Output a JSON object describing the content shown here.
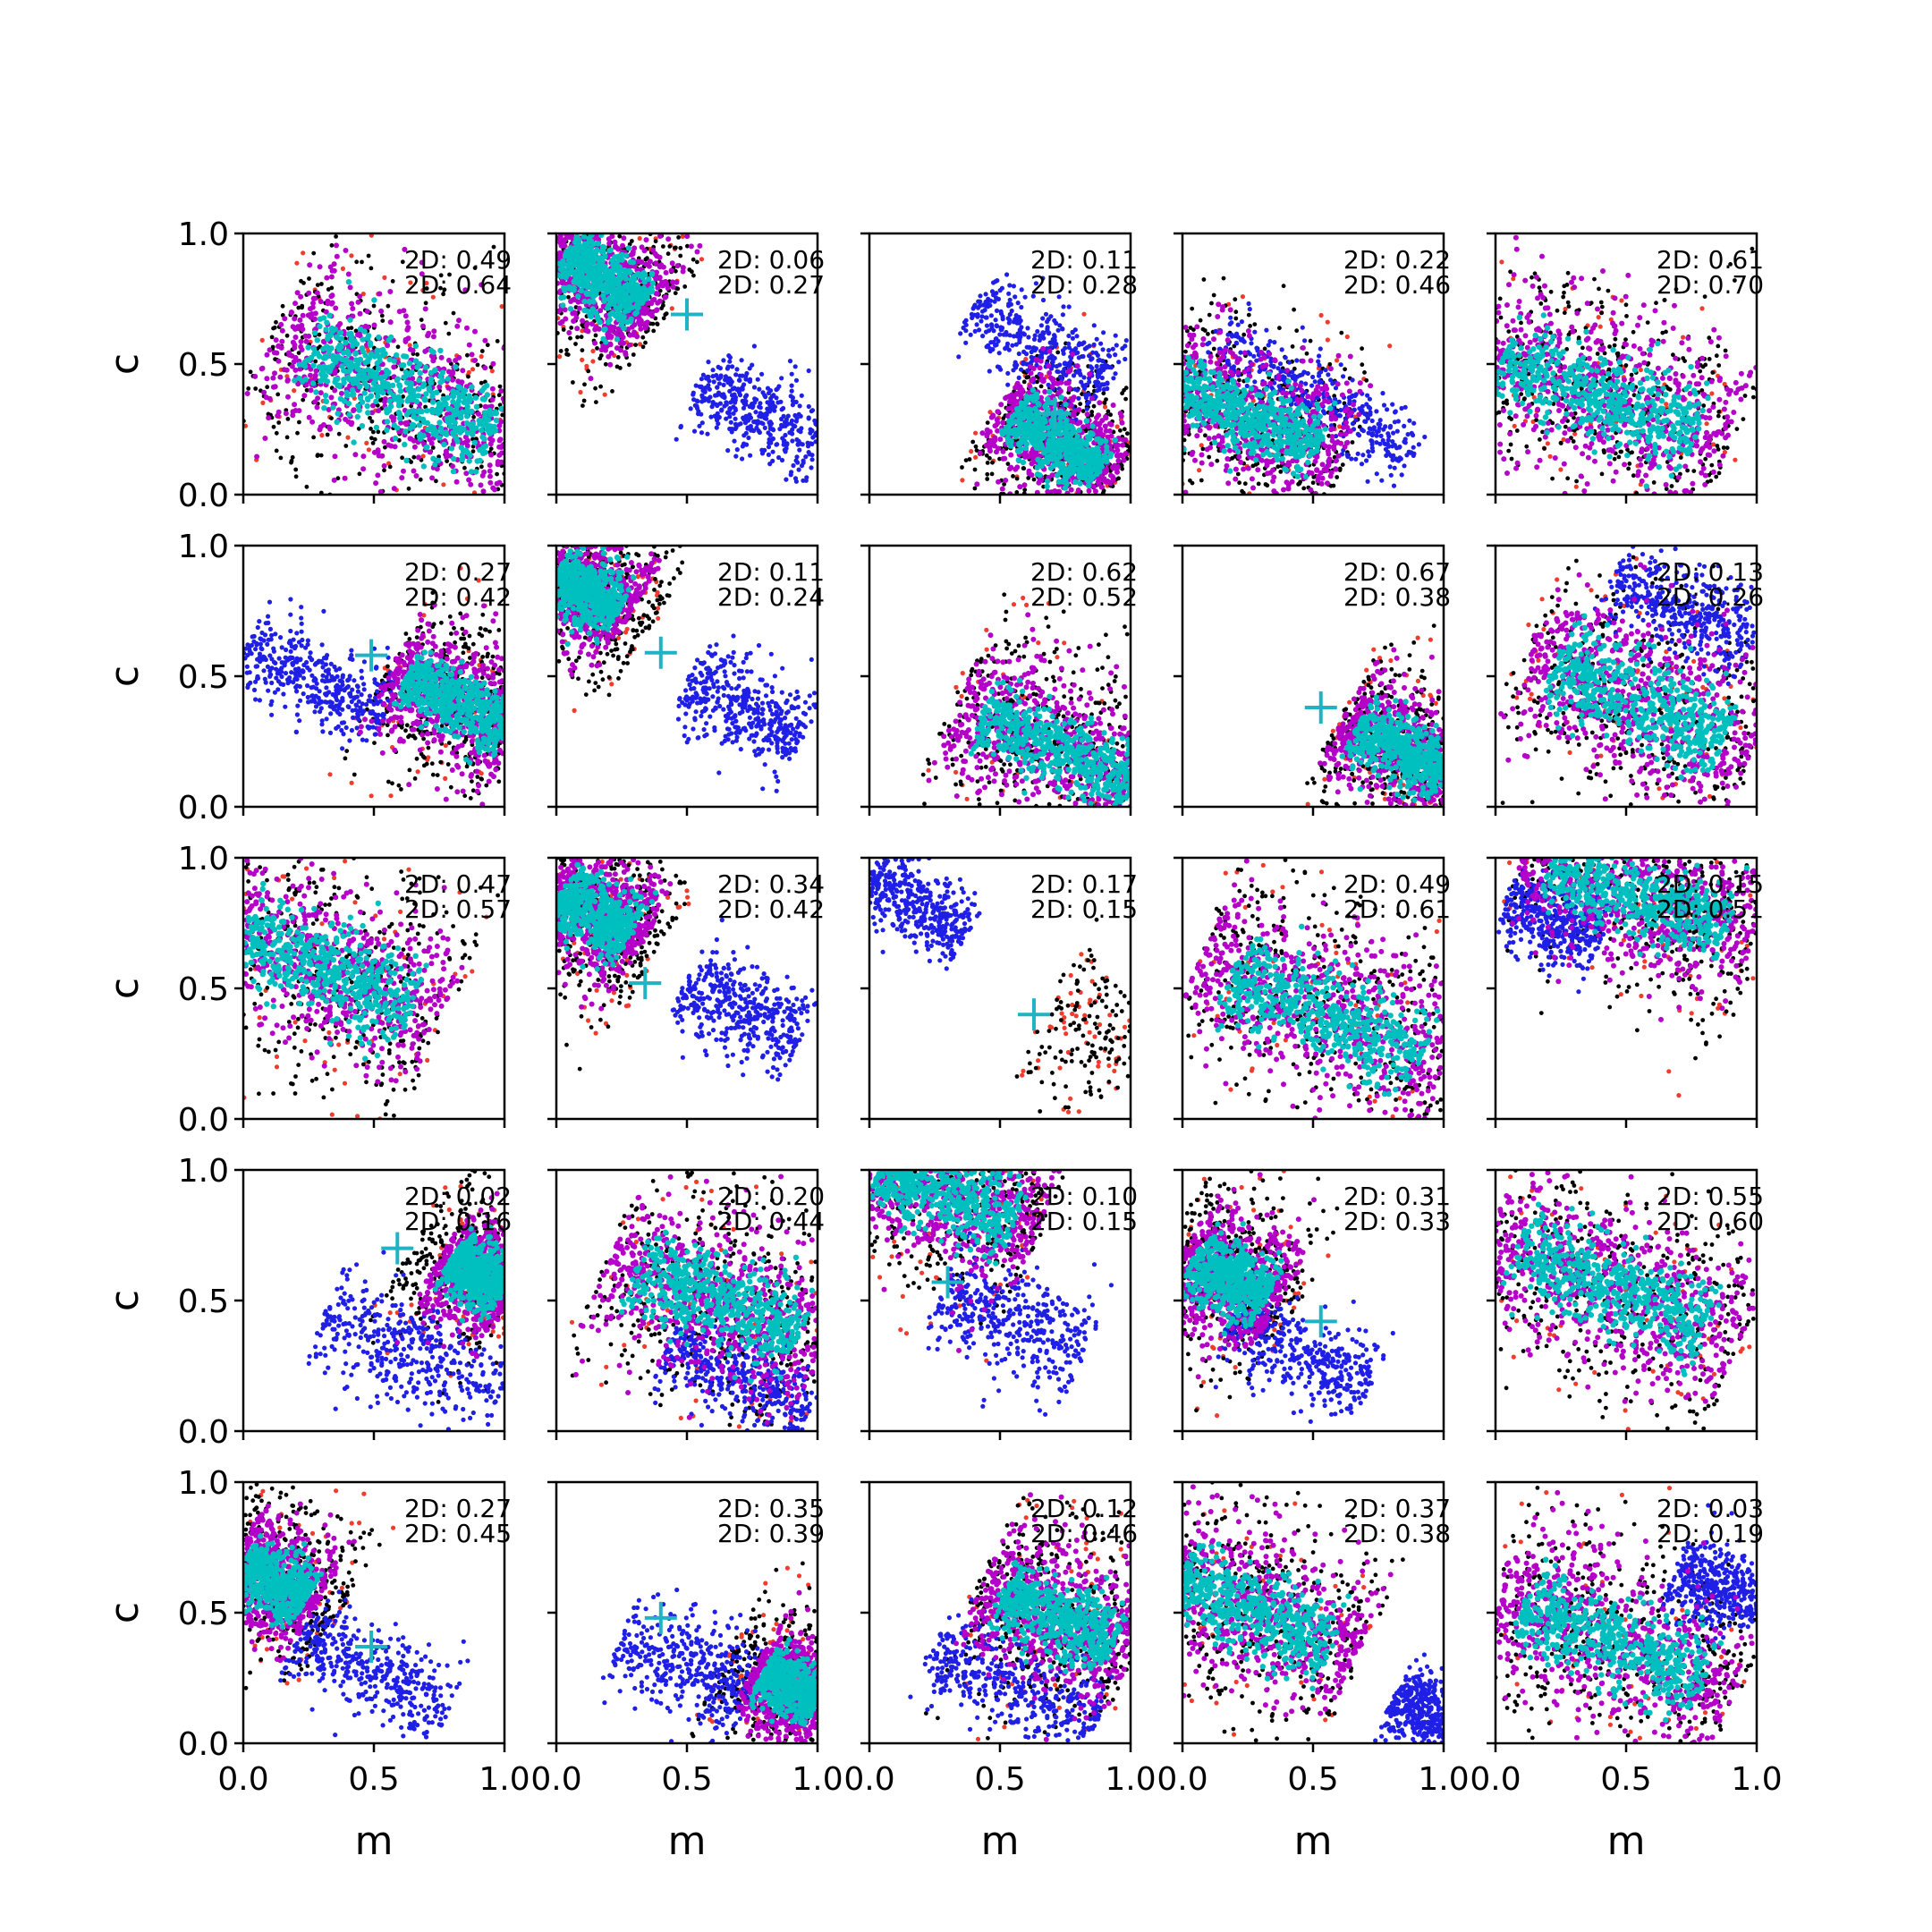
{
  "figure": {
    "background": "#ffffff",
    "xlabel": "m",
    "ylabel": "c",
    "tick_labels": [
      "0.0",
      "0.5",
      "1.0"
    ],
    "annotation_prefix": "2D:"
  },
  "colors": {
    "red": "#f03c2d",
    "black": "#000000",
    "blue": "#1f1fe6",
    "magenta": "#b400c8",
    "cyan": "#00bfbf",
    "marker": "#1fb3c4"
  },
  "chart_data": [
    {
      "type": "scatter",
      "row": 0,
      "col": 0,
      "xlim": [
        0,
        1
      ],
      "ylim": [
        0,
        1
      ],
      "annotations": [
        "2D: 0.49",
        "2D: 0.64"
      ],
      "marker": null,
      "blue_cluster": null,
      "core": {
        "cx": 0.6,
        "cy": 0.4,
        "slope": -0.5,
        "len": 1.0,
        "w": 0.3
      },
      "clip_right": true
    },
    {
      "type": "scatter",
      "row": 0,
      "col": 1,
      "xlim": [
        0,
        1
      ],
      "ylim": [
        0,
        1
      ],
      "annotations": [
        "2D: 0.06",
        "2D: 0.27"
      ],
      "marker": [
        0.5,
        0.69
      ],
      "blue_cluster": {
        "cx": 0.78,
        "cy": 0.3,
        "slope": -0.5,
        "len": 0.55,
        "w": 0.14
      },
      "core": {
        "cx": 0.18,
        "cy": 0.82,
        "slope": -0.7,
        "len": 0.45,
        "w": 0.22
      },
      "clip_right": false
    },
    {
      "type": "scatter",
      "row": 0,
      "col": 2,
      "xlim": [
        0,
        1
      ],
      "ylim": [
        0,
        1
      ],
      "annotations": [
        "2D: 0.11",
        "2D: 0.28"
      ],
      "marker": [
        0.71,
        0.31
      ],
      "blue_cluster": {
        "cx": 0.66,
        "cy": 0.57,
        "slope": -0.6,
        "len": 0.6,
        "w": 0.14
      },
      "core": {
        "cx": 0.72,
        "cy": 0.2,
        "slope": -0.7,
        "len": 0.5,
        "w": 0.2
      },
      "clip_right": true
    },
    {
      "type": "scatter",
      "row": 0,
      "col": 3,
      "xlim": [
        0,
        1
      ],
      "ylim": [
        0,
        1
      ],
      "annotations": [
        "2D: 0.22",
        "2D: 0.46"
      ],
      "marker": null,
      "blue_cluster": {
        "cx": 0.5,
        "cy": 0.38,
        "slope": -0.6,
        "len": 0.9,
        "w": 0.12
      },
      "core": {
        "cx": 0.25,
        "cy": 0.3,
        "slope": -0.45,
        "len": 0.75,
        "w": 0.24
      },
      "clip_right": true
    },
    {
      "type": "scatter",
      "row": 0,
      "col": 4,
      "xlim": [
        0,
        1
      ],
      "ylim": [
        0,
        1
      ],
      "annotations": [
        "2D: 0.61",
        "2D: 0.70"
      ],
      "marker": null,
      "blue_cluster": null,
      "core": {
        "cx": 0.4,
        "cy": 0.38,
        "slope": -0.4,
        "len": 1.0,
        "w": 0.3
      },
      "clip_right": true
    },
    {
      "type": "scatter",
      "row": 1,
      "col": 0,
      "xlim": [
        0,
        1
      ],
      "ylim": [
        0,
        1
      ],
      "annotations": [
        "2D: 0.27",
        "2D: 0.42"
      ],
      "marker": [
        0.49,
        0.58
      ],
      "blue_cluster": {
        "cx": 0.28,
        "cy": 0.48,
        "slope": -0.5,
        "len": 0.6,
        "w": 0.14
      },
      "core": {
        "cx": 0.82,
        "cy": 0.4,
        "slope": -0.55,
        "len": 0.55,
        "w": 0.22
      },
      "clip_right": true
    },
    {
      "type": "scatter",
      "row": 1,
      "col": 1,
      "xlim": [
        0,
        1
      ],
      "ylim": [
        0,
        1
      ],
      "annotations": [
        "2D: 0.11",
        "2D: 0.24"
      ],
      "marker": [
        0.4,
        0.59
      ],
      "blue_cluster": {
        "cx": 0.72,
        "cy": 0.37,
        "slope": -0.5,
        "len": 0.5,
        "w": 0.14
      },
      "core": {
        "cx": 0.12,
        "cy": 0.82,
        "slope": -0.6,
        "len": 0.35,
        "w": 0.22
      },
      "clip_right": false
    },
    {
      "type": "scatter",
      "row": 1,
      "col": 2,
      "xlim": [
        0,
        1
      ],
      "ylim": [
        0,
        1
      ],
      "annotations": [
        "2D: 0.62",
        "2D: 0.52"
      ],
      "marker": null,
      "blue_cluster": null,
      "core": {
        "cx": 0.72,
        "cy": 0.22,
        "slope": -0.45,
        "len": 0.8,
        "w": 0.26
      },
      "clip_right": true
    },
    {
      "type": "scatter",
      "row": 1,
      "col": 3,
      "xlim": [
        0,
        1
      ],
      "ylim": [
        0,
        1
      ],
      "annotations": [
        "2D: 0.67",
        "2D: 0.38"
      ],
      "marker": [
        0.53,
        0.38
      ],
      "blue_cluster": null,
      "core": {
        "cx": 0.85,
        "cy": 0.22,
        "slope": -0.55,
        "len": 0.5,
        "w": 0.22
      },
      "clip_right": true
    },
    {
      "type": "scatter",
      "row": 1,
      "col": 4,
      "xlim": [
        0,
        1
      ],
      "ylim": [
        0,
        1
      ],
      "annotations": [
        "2D: 0.13",
        "2D: 0.26"
      ],
      "marker": null,
      "blue_cluster": {
        "cx": 0.72,
        "cy": 0.76,
        "slope": -0.55,
        "len": 0.6,
        "w": 0.14
      },
      "core": {
        "cx": 0.55,
        "cy": 0.4,
        "slope": -0.45,
        "len": 0.9,
        "w": 0.3
      },
      "clip_right": true
    },
    {
      "type": "scatter",
      "row": 2,
      "col": 0,
      "xlim": [
        0,
        1
      ],
      "ylim": [
        0,
        1
      ],
      "annotations": [
        "2D: 0.47",
        "2D: 0.57"
      ],
      "marker": null,
      "blue_cluster": null,
      "core": {
        "cx": 0.32,
        "cy": 0.57,
        "slope": -0.45,
        "len": 0.9,
        "w": 0.3
      },
      "clip_right": true
    },
    {
      "type": "scatter",
      "row": 2,
      "col": 1,
      "xlim": [
        0,
        1
      ],
      "ylim": [
        0,
        1
      ],
      "annotations": [
        "2D: 0.34",
        "2D: 0.42"
      ],
      "marker": [
        0.34,
        0.52
      ],
      "blue_cluster": {
        "cx": 0.72,
        "cy": 0.42,
        "slope": -0.5,
        "len": 0.5,
        "w": 0.14
      },
      "core": {
        "cx": 0.15,
        "cy": 0.78,
        "slope": -0.6,
        "len": 0.4,
        "w": 0.24
      },
      "clip_right": true
    },
    {
      "type": "scatter",
      "row": 2,
      "col": 2,
      "xlim": [
        0,
        1
      ],
      "ylim": [
        0,
        1
      ],
      "annotations": [
        "2D: 0.17",
        "2D: 0.15"
      ],
      "marker": [
        0.63,
        0.4
      ],
      "blue_cluster": {
        "cx": 0.18,
        "cy": 0.82,
        "slope": -0.6,
        "len": 0.45,
        "w": 0.12
      },
      "core": null,
      "sparse_black": {
        "cx": 0.85,
        "cy": 0.33,
        "slope": -0.5,
        "len": 0.4,
        "w": 0.22
      },
      "clip_right": true
    },
    {
      "type": "scatter",
      "row": 2,
      "col": 3,
      "xlim": [
        0,
        1
      ],
      "ylim": [
        0,
        1
      ],
      "annotations": [
        "2D: 0.49",
        "2D: 0.61"
      ],
      "marker": null,
      "blue_cluster": null,
      "core": {
        "cx": 0.55,
        "cy": 0.4,
        "slope": -0.45,
        "len": 1.0,
        "w": 0.3
      },
      "clip_right": true
    },
    {
      "type": "scatter",
      "row": 2,
      "col": 4,
      "xlim": [
        0,
        1
      ],
      "ylim": [
        0,
        1
      ],
      "annotations": [
        "2D: 0.15",
        "2D: 0.51"
      ],
      "marker": null,
      "blue_cluster": {
        "cx": 0.22,
        "cy": 0.76,
        "slope": -0.4,
        "len": 0.4,
        "w": 0.12
      },
      "core": {
        "cx": 0.55,
        "cy": 0.85,
        "slope": -0.35,
        "len": 0.9,
        "w": 0.26
      },
      "clip_right": true
    },
    {
      "type": "scatter",
      "row": 3,
      "col": 0,
      "xlim": [
        0,
        1
      ],
      "ylim": [
        0,
        1
      ],
      "annotations": [
        "2D: 0.02",
        "2D: 0.16"
      ],
      "marker": [
        0.59,
        0.7
      ],
      "blue_cluster": {
        "cx": 0.65,
        "cy": 0.3,
        "slope": -0.45,
        "len": 0.75,
        "w": 0.16
      },
      "core": {
        "cx": 0.9,
        "cy": 0.6,
        "slope": -0.6,
        "len": 0.3,
        "w": 0.22
      },
      "clip_right": true
    },
    {
      "type": "scatter",
      "row": 3,
      "col": 1,
      "xlim": [
        0,
        1
      ],
      "ylim": [
        0,
        1
      ],
      "annotations": [
        "2D: 0.20",
        "2D: 0.44"
      ],
      "marker": null,
      "blue_cluster": {
        "cx": 0.7,
        "cy": 0.2,
        "slope": -0.45,
        "len": 0.6,
        "w": 0.14
      },
      "core": {
        "cx": 0.62,
        "cy": 0.5,
        "slope": -0.45,
        "len": 0.85,
        "w": 0.3
      },
      "clip_right": true
    },
    {
      "type": "scatter",
      "row": 3,
      "col": 2,
      "xlim": [
        0,
        1
      ],
      "ylim": [
        0,
        1
      ],
      "annotations": [
        "2D: 0.10",
        "2D: 0.15"
      ],
      "marker": [
        0.3,
        0.57
      ],
      "blue_cluster": {
        "cx": 0.55,
        "cy": 0.42,
        "slope": -0.45,
        "len": 0.6,
        "w": 0.16
      },
      "core": {
        "cx": 0.3,
        "cy": 0.9,
        "slope": -0.4,
        "len": 0.7,
        "w": 0.26
      },
      "clip_right": true
    },
    {
      "type": "scatter",
      "row": 3,
      "col": 3,
      "xlim": [
        0,
        1
      ],
      "ylim": [
        0,
        1
      ],
      "annotations": [
        "2D: 0.31",
        "2D: 0.33"
      ],
      "marker": [
        0.53,
        0.42
      ],
      "blue_cluster": {
        "cx": 0.45,
        "cy": 0.3,
        "slope": -0.5,
        "len": 0.6,
        "w": 0.14
      },
      "core": {
        "cx": 0.18,
        "cy": 0.58,
        "slope": -0.6,
        "len": 0.4,
        "w": 0.24
      },
      "clip_right": true
    },
    {
      "type": "scatter",
      "row": 3,
      "col": 4,
      "xlim": [
        0,
        1
      ],
      "ylim": [
        0,
        1
      ],
      "annotations": [
        "2D: 0.55",
        "2D: 0.60"
      ],
      "marker": null,
      "blue_cluster": null,
      "core": {
        "cx": 0.45,
        "cy": 0.55,
        "slope": -0.45,
        "len": 1.0,
        "w": 0.3
      },
      "clip_right": true
    },
    {
      "type": "scatter",
      "row": 4,
      "col": 0,
      "xlim": [
        0,
        1
      ],
      "ylim": [
        0,
        1
      ],
      "annotations": [
        "2D: 0.27",
        "2D: 0.45"
      ],
      "marker": [
        0.49,
        0.37
      ],
      "blue_cluster": {
        "cx": 0.5,
        "cy": 0.28,
        "slope": -0.45,
        "len": 0.65,
        "w": 0.14
      },
      "core": {
        "cx": 0.12,
        "cy": 0.62,
        "slope": -0.6,
        "len": 0.35,
        "w": 0.22
      },
      "clip_right": true
    },
    {
      "type": "scatter",
      "row": 4,
      "col": 1,
      "xlim": [
        0,
        1
      ],
      "ylim": [
        0,
        1
      ],
      "annotations": [
        "2D: 0.35",
        "2D: 0.39"
      ],
      "marker": [
        0.4,
        0.48
      ],
      "blue_cluster": {
        "cx": 0.5,
        "cy": 0.3,
        "slope": -0.45,
        "len": 0.55,
        "w": 0.16
      },
      "core": {
        "cx": 0.9,
        "cy": 0.22,
        "slope": -0.55,
        "len": 0.3,
        "w": 0.2
      },
      "clip_right": true
    },
    {
      "type": "scatter",
      "row": 4,
      "col": 2,
      "xlim": [
        0,
        1
      ],
      "ylim": [
        0,
        1
      ],
      "annotations": [
        "2D: 0.12",
        "2D: 0.46"
      ],
      "marker": null,
      "blue_cluster": {
        "cx": 0.55,
        "cy": 0.22,
        "slope": -0.45,
        "len": 0.7,
        "w": 0.16
      },
      "core": {
        "cx": 0.72,
        "cy": 0.48,
        "slope": -0.45,
        "len": 0.6,
        "w": 0.26
      },
      "clip_right": true
    },
    {
      "type": "scatter",
      "row": 4,
      "col": 3,
      "xlim": [
        0,
        1
      ],
      "ylim": [
        0,
        1
      ],
      "annotations": [
        "2D: 0.37",
        "2D: 0.38"
      ],
      "marker": null,
      "blue_cluster": {
        "cx": 0.92,
        "cy": 0.12,
        "slope": -0.5,
        "len": 0.25,
        "w": 0.12
      },
      "core": {
        "cx": 0.28,
        "cy": 0.5,
        "slope": -0.45,
        "len": 0.8,
        "w": 0.28
      },
      "clip_right": true
    },
    {
      "type": "scatter",
      "row": 4,
      "col": 4,
      "xlim": [
        0,
        1
      ],
      "ylim": [
        0,
        1
      ],
      "annotations": [
        "2D: 0.03",
        "2D: 0.19"
      ],
      "marker": null,
      "blue_cluster": {
        "cx": 0.85,
        "cy": 0.6,
        "slope": -0.4,
        "len": 0.35,
        "w": 0.14
      },
      "core": {
        "cx": 0.45,
        "cy": 0.38,
        "slope": -0.45,
        "len": 0.95,
        "w": 0.3
      },
      "clip_right": true
    }
  ]
}
